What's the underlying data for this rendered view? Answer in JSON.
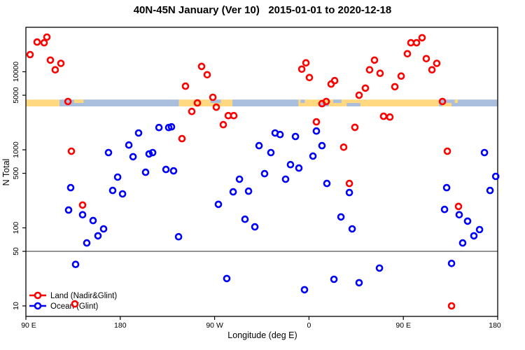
{
  "title": "40N-45N January (Ver 10)   2015-01-01 to 2020-12-18",
  "colors": {
    "land_series": "#FF0000",
    "ocean_series": "#0000FF",
    "band_land": "#FFD880",
    "band_ocean": "#A8BEDC",
    "reference_line": "#8C8C8C",
    "axis": "#000000"
  },
  "legend": {
    "items": [
      {
        "name": "land",
        "label": "Land (Nadir&Glint)",
        "color": "#FF0000"
      },
      {
        "name": "ocean",
        "label": "Ocean (Glint)",
        "color": "#0000FF"
      }
    ]
  },
  "chart_data": {
    "type": "scatter",
    "title": "40N-45N January (Ver 10)   2015-01-01 to 2020-12-18",
    "xlabel": "Longitude (deg E)",
    "ylabel": "N Total",
    "x_axis": {
      "note": "longitude shown from 90E eastward, wrapping through 180, 90W, 0, 90E to 180 (display coords 90..540)",
      "range": [
        90,
        540
      ],
      "ticks": [
        {
          "lon": 90,
          "label": "90 E"
        },
        {
          "lon": 180,
          "label": "180"
        },
        {
          "lon": 270,
          "label": "90 W"
        },
        {
          "lon": 360,
          "label": "0"
        },
        {
          "lon": 450,
          "label": "90 E"
        },
        {
          "lon": 540,
          "label": "180"
        }
      ]
    },
    "y_axis": {
      "scale": "log10",
      "range": [
        7,
        38000
      ],
      "ticks": [
        {
          "value": 10,
          "label": "10"
        },
        {
          "value": 50,
          "label": "50"
        },
        {
          "value": 100,
          "label": "100"
        },
        {
          "value": 500,
          "label": "500"
        },
        {
          "value": 1000,
          "label": "1000"
        },
        {
          "value": 5000,
          "label": "5000"
        },
        {
          "value": 10000,
          "label": "10000"
        }
      ]
    },
    "reference_line": {
      "value": 50
    },
    "map_band": {
      "description": "land/ocean strip for the 40N-45N latitude band drawn across the plot",
      "n_range": [
        3600,
        4400
      ],
      "segments": [
        {
          "from": 90,
          "to": 122,
          "surface": "land"
        },
        {
          "from": 122,
          "to": 236,
          "surface": "ocean"
        },
        {
          "from": 236,
          "to": 287,
          "surface": "land"
        },
        {
          "from": 287,
          "to": 350,
          "surface": "ocean"
        },
        {
          "from": 350,
          "to": 484,
          "surface": "land"
        },
        {
          "from": 484,
          "to": 539.5,
          "surface": "ocean"
        }
      ],
      "patches": [
        {
          "from": 136,
          "to": 145,
          "half": "top",
          "surface": "land"
        },
        {
          "from": 266,
          "to": 276,
          "half": "top",
          "surface": "ocean"
        },
        {
          "from": 352,
          "to": 356,
          "half": "top",
          "surface": "ocean"
        },
        {
          "from": 369,
          "to": 379,
          "half": "bottom",
          "surface": "ocean"
        },
        {
          "from": 383,
          "to": 391,
          "half": "top",
          "surface": "ocean"
        },
        {
          "from": 396,
          "to": 409,
          "half": "bottom",
          "surface": "ocean"
        },
        {
          "from": 487,
          "to": 496,
          "half": "bottom",
          "surface": "land"
        },
        {
          "from": 499,
          "to": 502,
          "half": "top",
          "surface": "land"
        }
      ]
    },
    "series": [
      {
        "name": "Land (Nadir&Glint)",
        "color": "#FF0000",
        "points": [
          [
            100.7,
            24000
          ],
          [
            107.4,
            23500
          ],
          [
            110.0,
            27800
          ],
          [
            94.0,
            16600
          ],
          [
            113.4,
            14100
          ],
          [
            123.4,
            12800
          ],
          [
            118.0,
            10600
          ],
          [
            130.1,
            4160
          ],
          [
            133.4,
            960
          ],
          [
            144.1,
            196
          ],
          [
            136.7,
            10.6
          ],
          [
            242.2,
            6540
          ],
          [
            257.6,
            11700
          ],
          [
            262.9,
            9150
          ],
          [
            268.3,
            4710
          ],
          [
            271.6,
            3520
          ],
          [
            253.6,
            3980
          ],
          [
            248.2,
            3100
          ],
          [
            283.0,
            2740
          ],
          [
            288.3,
            2740
          ],
          [
            278.3,
            2100
          ],
          [
            238.9,
            1390
          ],
          [
            353.1,
            10800
          ],
          [
            357.1,
            13000
          ],
          [
            360.4,
            8430
          ],
          [
            381.1,
            6950
          ],
          [
            384.5,
            7700
          ],
          [
            372.4,
            3900
          ],
          [
            376.5,
            4160
          ],
          [
            367.1,
            2280
          ],
          [
            403.8,
            1940
          ],
          [
            393.1,
            1080
          ],
          [
            398.5,
            370
          ],
          [
            407.8,
            5010
          ],
          [
            413.8,
            6170
          ],
          [
            417.8,
            10600
          ],
          [
            422.5,
            14100
          ],
          [
            427.8,
            9560
          ],
          [
            431.2,
            2690
          ],
          [
            437.2,
            2630
          ],
          [
            441.9,
            6430
          ],
          [
            447.9,
            8790
          ],
          [
            453.9,
            17000
          ],
          [
            457.2,
            23500
          ],
          [
            462.6,
            23500
          ],
          [
            467.9,
            27300
          ],
          [
            471.9,
            14700
          ],
          [
            477.3,
            10600
          ],
          [
            481.9,
            12800
          ],
          [
            487.3,
            4160
          ],
          [
            492.0,
            960
          ],
          [
            502.6,
            188
          ],
          [
            496.0,
            10.0
          ]
        ]
      },
      {
        "name": "Ocean (Glint)",
        "color": "#0000FF",
        "points": [
          [
            130.7,
            169
          ],
          [
            144.1,
            147
          ],
          [
            154.1,
            124
          ],
          [
            164.1,
            97
          ],
          [
            158.8,
            79
          ],
          [
            148.1,
            64
          ],
          [
            137.4,
            34
          ],
          [
            132.7,
            327
          ],
          [
            168.8,
            920
          ],
          [
            188.2,
            1150
          ],
          [
            197.5,
            1640
          ],
          [
            216.9,
            1930
          ],
          [
            226.2,
            1930
          ],
          [
            192.2,
            815
          ],
          [
            207.5,
            885
          ],
          [
            210.9,
            920
          ],
          [
            223.6,
            560
          ],
          [
            230.9,
            537
          ],
          [
            204.2,
            515
          ],
          [
            177.5,
            447
          ],
          [
            172.8,
            301
          ],
          [
            182.2,
            272
          ],
          [
            228.9,
            1970
          ],
          [
            235.6,
            77
          ],
          [
            273.6,
            200
          ],
          [
            281.6,
            22.4
          ],
          [
            299.0,
            129
          ],
          [
            308.4,
            103
          ],
          [
            293.7,
            420
          ],
          [
            287.7,
            289
          ],
          [
            302.4,
            295
          ],
          [
            317.7,
            495
          ],
          [
            327.7,
            1640
          ],
          [
            332.4,
            1570
          ],
          [
            347.1,
            1480
          ],
          [
            323.7,
            920
          ],
          [
            312.4,
            1130
          ],
          [
            337.7,
            420
          ],
          [
            342.4,
            646
          ],
          [
            350.4,
            583
          ],
          [
            355.7,
            16.1
          ],
          [
            367.1,
            1740
          ],
          [
            363.8,
            830
          ],
          [
            372.4,
            1130
          ],
          [
            377.1,
            370
          ],
          [
            383.8,
            21.9
          ],
          [
            398.5,
            283
          ],
          [
            390.5,
            138
          ],
          [
            401.2,
            97
          ],
          [
            407.8,
            19.8
          ],
          [
            427.2,
            30.5
          ],
          [
            491.3,
            327
          ],
          [
            527.4,
            920
          ],
          [
            538.1,
            456
          ],
          [
            532.7,
            301
          ],
          [
            489.3,
            172
          ],
          [
            503.3,
            147
          ],
          [
            511.3,
            122
          ],
          [
            517.3,
            79
          ],
          [
            522.7,
            95
          ],
          [
            506.6,
            64
          ],
          [
            496.0,
            35
          ]
        ]
      }
    ]
  }
}
